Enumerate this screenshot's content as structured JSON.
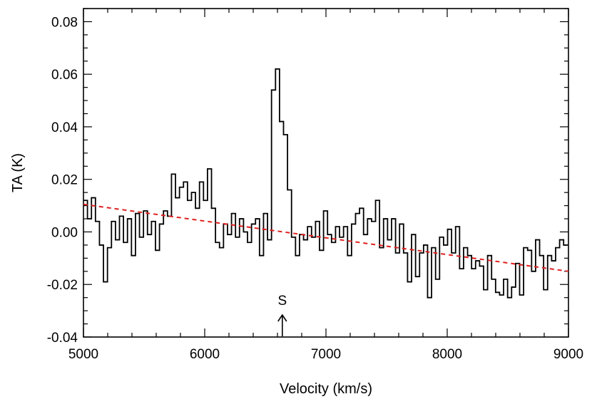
{
  "chart_data": {
    "type": "line",
    "xlabel": "Velocity (km/s)",
    "ylabel": "TA (K)",
    "xlim": [
      5000,
      9000
    ],
    "ylim": [
      -0.04,
      0.085
    ],
    "xticks": [
      5000,
      6000,
      7000,
      8000,
      9000
    ],
    "xtick_labels": [
      "5000",
      "6000",
      "7000",
      "8000",
      "9000"
    ],
    "yticks": [
      -0.04,
      -0.02,
      0.0,
      0.02,
      0.04,
      0.06,
      0.08
    ],
    "ytick_labels": [
      "-0.04",
      "-0.02",
      "0.00",
      "0.02",
      "0.04",
      "0.06",
      "0.08"
    ],
    "grid": false,
    "series": [
      {
        "style": "steps",
        "color": "#000000",
        "x": [
          5000,
          5033,
          5066,
          5099,
          5132,
          5165,
          5198,
          5231,
          5264,
          5297,
          5330,
          5363,
          5396,
          5429,
          5462,
          5495,
          5528,
          5561,
          5594,
          5627,
          5660,
          5693,
          5726,
          5759,
          5792,
          5825,
          5858,
          5891,
          5924,
          5957,
          5990,
          6023,
          6056,
          6089,
          6122,
          6155,
          6188,
          6221,
          6254,
          6287,
          6320,
          6353,
          6386,
          6419,
          6452,
          6485,
          6518,
          6551,
          6584,
          6617,
          6650,
          6683,
          6716,
          6749,
          6782,
          6815,
          6848,
          6881,
          6914,
          6947,
          6980,
          7013,
          7046,
          7079,
          7112,
          7145,
          7178,
          7211,
          7244,
          7277,
          7310,
          7343,
          7376,
          7409,
          7442,
          7475,
          7508,
          7541,
          7574,
          7607,
          7640,
          7673,
          7706,
          7739,
          7772,
          7805,
          7838,
          7871,
          7904,
          7937,
          7970,
          8003,
          8036,
          8069,
          8102,
          8135,
          8168,
          8201,
          8234,
          8267,
          8300,
          8333,
          8366,
          8399,
          8432,
          8465,
          8498,
          8531,
          8564,
          8597,
          8630,
          8663,
          8696,
          8729,
          8762,
          8795,
          8828,
          8861,
          8894,
          8927,
          8960
        ],
        "y": [
          0.012,
          0.005,
          0.013,
          0.004,
          -0.005,
          -0.019,
          -0.006,
          0.004,
          -0.003,
          0.006,
          -0.004,
          0.005,
          -0.009,
          0.007,
          -0.002,
          0.008,
          -0.001,
          0.004,
          -0.007,
          0.003,
          0.008,
          0.006,
          0.022,
          0.013,
          0.017,
          0.019,
          0.012,
          0.015,
          0.009,
          0.019,
          0.012,
          0.024,
          0.009,
          -0.004,
          -0.006,
          0.003,
          -0.001,
          0.007,
          -0.002,
          0.005,
          0.0,
          -0.004,
          0.003,
          0.005,
          -0.009,
          0.007,
          -0.003,
          0.054,
          0.062,
          0.042,
          0.037,
          0.016,
          -0.002,
          -0.009,
          -0.001,
          -0.003,
          0.002,
          -0.002,
          0.004,
          -0.007,
          0.008,
          -0.001,
          -0.004,
          0.002,
          -0.002,
          0.002,
          -0.009,
          0.003,
          0.007,
          0.009,
          -0.001,
          0.005,
          0.004,
          0.012,
          -0.006,
          0.005,
          -0.003,
          0.005,
          -0.008,
          0.003,
          -0.008,
          -0.019,
          -0.001,
          -0.017,
          -0.008,
          -0.005,
          -0.025,
          -0.006,
          -0.018,
          -0.002,
          -0.005,
          0.001,
          -0.008,
          0.002,
          -0.014,
          -0.006,
          -0.009,
          -0.014,
          -0.011,
          -0.013,
          -0.022,
          -0.009,
          -0.018,
          -0.023,
          -0.024,
          -0.018,
          -0.025,
          -0.021,
          -0.012,
          -0.024,
          -0.006,
          -0.007,
          -0.015,
          -0.003,
          -0.009,
          -0.022,
          -0.009,
          -0.011,
          -0.006,
          -0.003,
          -0.005
        ]
      },
      {
        "style": "dashed",
        "color": "#e02020",
        "x": [
          5000,
          9000
        ],
        "y": [
          0.0105,
          -0.015
        ]
      }
    ],
    "annotations": [
      {
        "text": "S",
        "x": 6640,
        "marker": "arrow-up"
      }
    ]
  }
}
